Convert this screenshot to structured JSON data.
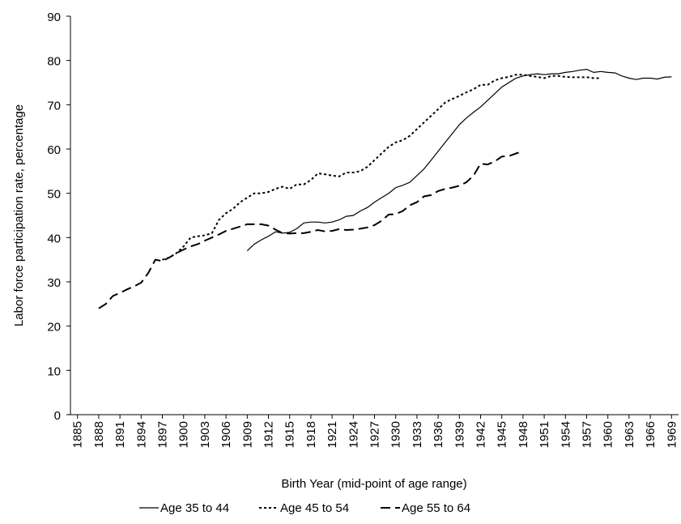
{
  "chart_data": {
    "type": "line",
    "ylabel": "Labor force participation rate, percentage",
    "xlabel": "Birth Year (mid-point of age range)",
    "xlim": [
      1884,
      1970
    ],
    "xticks": [
      1885,
      1888,
      1891,
      1894,
      1897,
      1900,
      1903,
      1906,
      1909,
      1912,
      1915,
      1918,
      1921,
      1924,
      1927,
      1930,
      1933,
      1936,
      1939,
      1942,
      1945,
      1948,
      1951,
      1954,
      1957,
      1960,
      1963,
      1966,
      1969
    ],
    "ylim": [
      0,
      90
    ],
    "yticks": [
      0,
      10,
      20,
      30,
      40,
      50,
      60,
      70,
      80,
      90
    ],
    "grid": false,
    "legend": "bottom",
    "x": [
      1888,
      1889,
      1890,
      1891,
      1892,
      1893,
      1894,
      1895,
      1896,
      1897,
      1898,
      1899,
      1900,
      1901,
      1902,
      1903,
      1904,
      1905,
      1906,
      1907,
      1908,
      1909,
      1910,
      1911,
      1912,
      1913,
      1914,
      1915,
      1916,
      1917,
      1918,
      1919,
      1920,
      1921,
      1922,
      1923,
      1924,
      1925,
      1926,
      1927,
      1928,
      1929,
      1930,
      1931,
      1932,
      1933,
      1934,
      1935,
      1936,
      1937,
      1938,
      1939,
      1940,
      1941,
      1942,
      1943,
      1944,
      1945,
      1946,
      1947,
      1948,
      1949,
      1950,
      1951,
      1952,
      1953,
      1954,
      1955,
      1956,
      1957,
      1958,
      1959,
      1960,
      1961,
      1962,
      1963,
      1964,
      1965,
      1966,
      1967,
      1968,
      1969
    ],
    "series": [
      {
        "name": "Age 35 to 44",
        "color": "#000000",
        "dash": "solid",
        "values": [
          null,
          null,
          null,
          null,
          null,
          null,
          null,
          null,
          null,
          null,
          null,
          null,
          null,
          null,
          null,
          null,
          null,
          null,
          null,
          null,
          null,
          37,
          38.5,
          39.5,
          40.3,
          41.3,
          41,
          41.2,
          42,
          43.3,
          43.5,
          43.5,
          43.3,
          43.5,
          44,
          44.8,
          45,
          46,
          46.8,
          48,
          49,
          50,
          51.3,
          51.8,
          52.5,
          54,
          55.5,
          57.5,
          59.5,
          61.5,
          63.5,
          65.5,
          67,
          68.3,
          69.5,
          71,
          72.5,
          74,
          75,
          76,
          76.5,
          76.8,
          77,
          76.8,
          77,
          77,
          77.3,
          77.5,
          77.8,
          78,
          77.3,
          77.5,
          77.3,
          77.2,
          76.5,
          76,
          75.7,
          76,
          76,
          75.8,
          76.2,
          76.3
        ]
      },
      {
        "name": "Age 45 to 54",
        "color": "#000000",
        "dash": "short",
        "values": [
          null,
          null,
          null,
          null,
          null,
          null,
          null,
          null,
          null,
          35,
          35.5,
          36.5,
          38,
          40,
          40.3,
          40.5,
          41,
          44,
          45.5,
          46.5,
          48,
          49,
          50,
          50,
          50.3,
          51,
          51.5,
          51,
          52,
          52,
          53,
          54.5,
          54.3,
          54,
          53.8,
          54.7,
          54.7,
          55,
          56,
          57.5,
          59,
          60.5,
          61.5,
          62,
          63,
          64.5,
          66,
          67.5,
          69,
          70.5,
          71.3,
          72,
          72.8,
          73.5,
          74.5,
          74.5,
          75.5,
          76,
          76.3,
          76.8,
          76.8,
          76.5,
          76.3,
          76,
          76.5,
          76.5,
          76.3,
          76.2,
          76.2,
          76.2,
          76,
          76,
          null,
          null,
          null,
          null,
          null,
          null,
          null,
          null,
          null,
          null
        ]
      },
      {
        "name": "Age 55 to 64",
        "color": "#000000",
        "dash": "long",
        "values": [
          24,
          25,
          26.8,
          27.5,
          28.3,
          29,
          29.8,
          32,
          35,
          34.7,
          35.5,
          36.5,
          37.3,
          38,
          38.5,
          39.3,
          40,
          40.7,
          41.5,
          42,
          42.5,
          43,
          43,
          43,
          42.7,
          41.8,
          41,
          40.9,
          41,
          41,
          41.3,
          41.7,
          41.4,
          41.5,
          41.9,
          41.7,
          41.8,
          42,
          42.3,
          42.8,
          43.8,
          45.2,
          45.3,
          46,
          47.3,
          48,
          49.3,
          49.6,
          50.5,
          51,
          51.3,
          51.7,
          52.5,
          54,
          56.7,
          56.5,
          57.2,
          58.3,
          58.4,
          59,
          59.5,
          null,
          null,
          null,
          null,
          null,
          null,
          null,
          null,
          null,
          null,
          null,
          null,
          null,
          null,
          null,
          null,
          null,
          null,
          null,
          null,
          null
        ]
      }
    ]
  }
}
